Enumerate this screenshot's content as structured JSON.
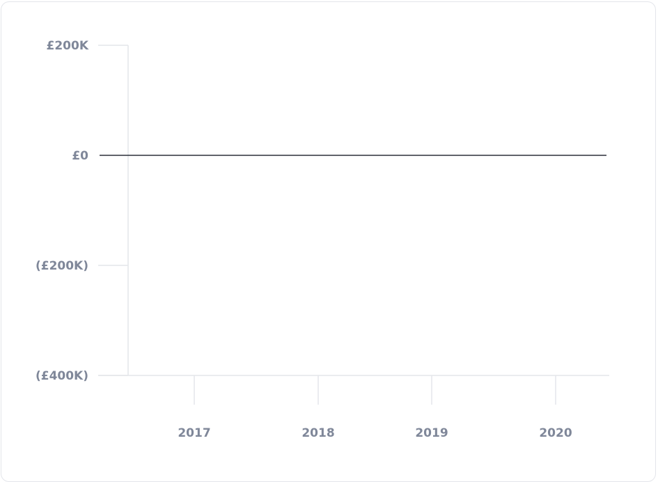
{
  "chart_data": {
    "type": "line",
    "title": "",
    "xlabel": "",
    "ylabel": "",
    "categories": [
      "2017",
      "2018",
      "2019",
      "2020"
    ],
    "y_ticks": [
      {
        "value": 200000,
        "label": "£200K"
      },
      {
        "value": 0,
        "label": "£0"
      },
      {
        "value": -200000,
        "label": "(£200K)"
      },
      {
        "value": -400000,
        "label": "(£400K)"
      }
    ],
    "ylim": [
      -400000,
      200000
    ],
    "reference_line": {
      "value": 0,
      "color": "#2b2f38"
    },
    "series": [],
    "colors": {
      "grid": "#e4e6ea",
      "tick_text": "#7f8799"
    }
  }
}
